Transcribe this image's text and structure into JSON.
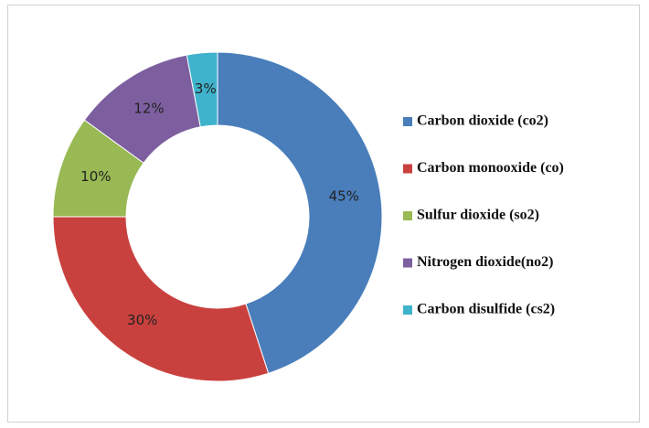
{
  "chart_data": {
    "type": "donut",
    "categories": [
      "Carbon dioxide (co2)",
      "Carbon monooxide (co)",
      "Sulfur dioxide (so2)",
      "Nitrogen dioxide(no2)",
      "Carbon disulfide (cs2)"
    ],
    "values": [
      45,
      30,
      10,
      12,
      3
    ],
    "value_labels": [
      "45%",
      "30%",
      "10%",
      "12%",
      "3%"
    ],
    "colors": [
      "#4a7ebb",
      "#c9413e",
      "#98b954",
      "#7d5fa0",
      "#3fb2cc"
    ],
    "legend": "right"
  }
}
